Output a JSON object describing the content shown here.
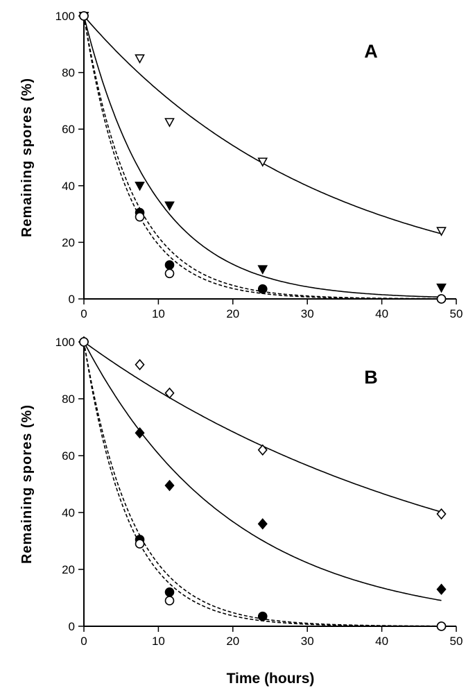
{
  "chart_data": [
    {
      "type": "scatter",
      "panel_label": "A",
      "xlabel": "",
      "ylabel": "Remaining spores (%)",
      "xlim": [
        0,
        50
      ],
      "ylim": [
        0,
        100
      ],
      "xticks": [
        0,
        10,
        20,
        30,
        40,
        50
      ],
      "yticks": [
        0,
        20,
        40,
        60,
        80,
        100
      ],
      "grid": false,
      "series": [
        {
          "name": "open-triangle",
          "marker": "triangle-down-open",
          "x": [
            0,
            7.5,
            11.5,
            24,
            48
          ],
          "y": [
            100,
            85,
            62.5,
            48.5,
            24
          ],
          "fit": {
            "style": "solid",
            "k": 0.0306
          }
        },
        {
          "name": "filled-triangle",
          "marker": "triangle-down-filled",
          "x": [
            0,
            7.5,
            11.5,
            24,
            48
          ],
          "y": [
            100,
            40,
            33,
            10.5,
            4
          ],
          "fit": {
            "style": "solid",
            "k": 0.105
          }
        },
        {
          "name": "filled-circle",
          "marker": "circle-filled",
          "x": [
            0,
            7.5,
            11.5,
            24,
            48
          ],
          "y": [
            100,
            30.5,
            12,
            3.5,
            0
          ],
          "fit": {
            "style": "dashed",
            "k": 0.152
          }
        },
        {
          "name": "open-circle",
          "marker": "circle-open",
          "x": [
            0,
            7.5,
            11.5,
            48
          ],
          "y": [
            100,
            29,
            9,
            0
          ],
          "fit": {
            "style": "dashed",
            "k": 0.165
          }
        }
      ]
    },
    {
      "type": "scatter",
      "panel_label": "B",
      "xlabel": "Time (hours)",
      "ylabel": "Remaining spores (%)",
      "xlim": [
        0,
        50
      ],
      "ylim": [
        0,
        100
      ],
      "xticks": [
        0,
        10,
        20,
        30,
        40,
        50
      ],
      "yticks": [
        0,
        20,
        40,
        60,
        80,
        100
      ],
      "grid": false,
      "series": [
        {
          "name": "open-diamond",
          "marker": "diamond-open",
          "x": [
            0,
            7.5,
            11.5,
            24,
            48
          ],
          "y": [
            100,
            92,
            82,
            62,
            39.5
          ],
          "fit": {
            "style": "solid",
            "k": 0.019
          }
        },
        {
          "name": "filled-diamond",
          "marker": "diamond-filled",
          "x": [
            0,
            7.5,
            11.5,
            24,
            48
          ],
          "y": [
            100,
            68,
            49.5,
            36,
            13
          ],
          "fit": {
            "style": "solid",
            "k": 0.05
          }
        },
        {
          "name": "filled-circle",
          "marker": "circle-filled",
          "x": [
            0,
            7.5,
            11.5,
            24,
            48
          ],
          "y": [
            100,
            30.5,
            12,
            3.5,
            0
          ],
          "fit": {
            "style": "dashed",
            "k": 0.152
          }
        },
        {
          "name": "open-circle",
          "marker": "circle-open",
          "x": [
            0,
            7.5,
            11.5,
            48
          ],
          "y": [
            100,
            29,
            9,
            0
          ],
          "fit": {
            "style": "dashed",
            "k": 0.165
          }
        }
      ]
    }
  ]
}
